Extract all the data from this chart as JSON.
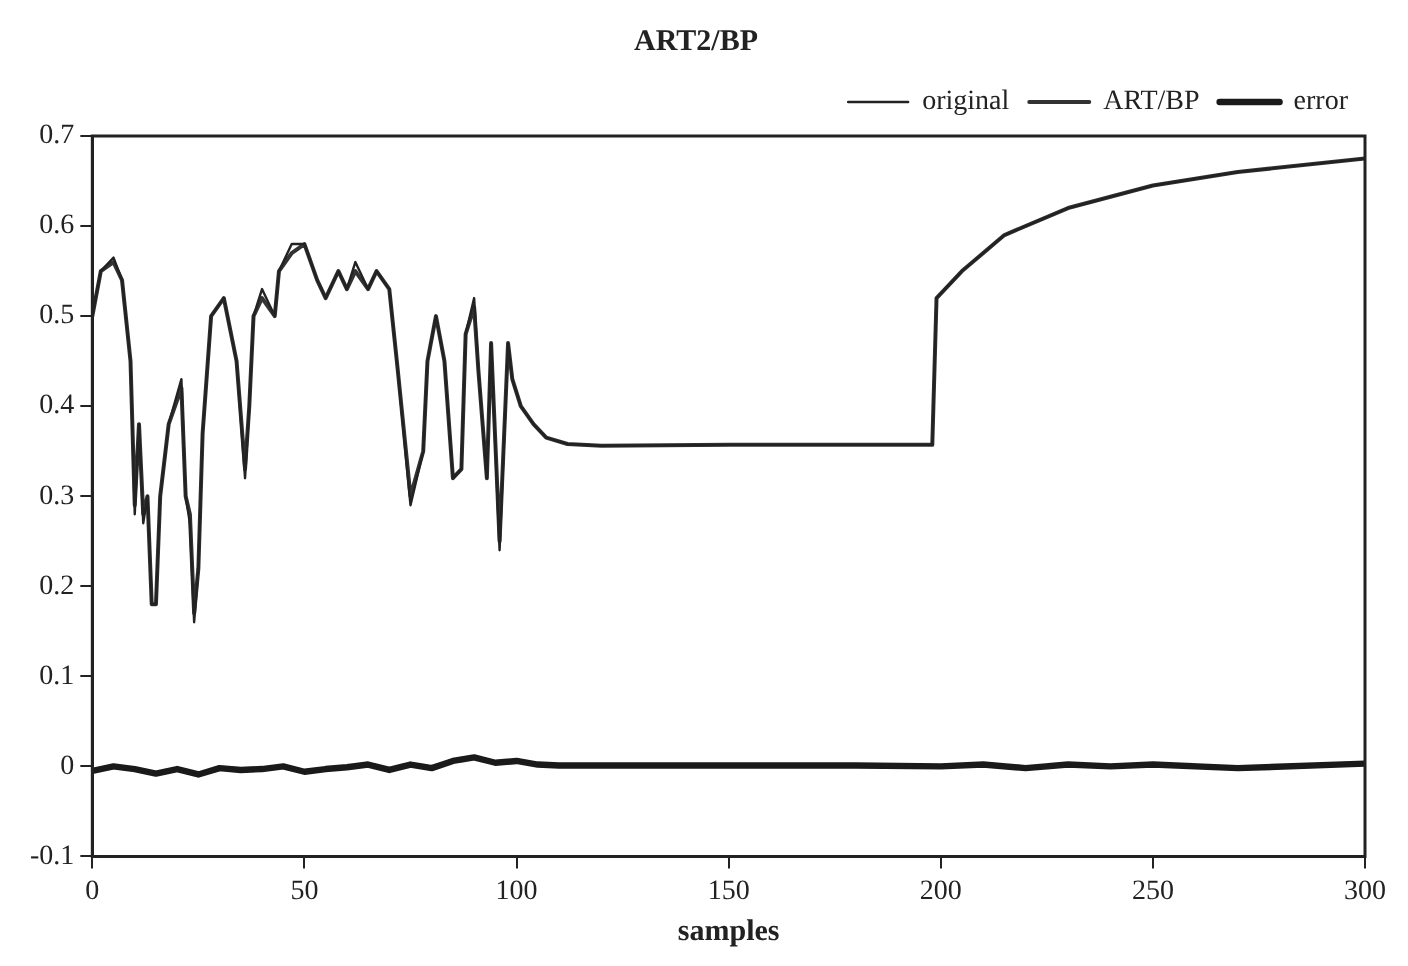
{
  "chart_data": {
    "type": "line",
    "title": "ART2/BP",
    "xlabel": "samples",
    "xlim": [
      0,
      300
    ],
    "ylim": [
      -0.1,
      0.7
    ],
    "xticks": [
      0,
      50,
      100,
      150,
      200,
      250,
      300
    ],
    "yticks": [
      -0.1,
      0,
      0.1,
      0.2,
      0.3,
      0.4,
      0.5,
      0.6,
      0.7
    ],
    "legend": "top right",
    "grid": false,
    "marker": "none",
    "line_style": "solid",
    "series": [
      {
        "name": "original",
        "color": "#222222",
        "x": [
          0,
          2,
          5,
          7,
          9,
          10,
          11,
          12,
          13,
          14,
          15,
          16,
          18,
          21,
          22,
          23,
          24,
          25,
          26,
          28,
          31,
          34,
          36,
          37,
          38,
          40,
          43,
          44,
          47,
          50,
          53,
          55,
          58,
          60,
          62,
          65,
          67,
          70,
          72,
          75,
          78,
          79,
          81,
          83,
          85,
          87,
          88,
          90,
          91,
          93,
          94,
          96,
          98,
          99,
          101,
          104,
          107,
          112,
          120,
          150,
          198,
          199,
          205,
          215,
          230,
          250,
          270,
          300
        ],
        "values": [
          0.5,
          0.55,
          0.565,
          0.54,
          0.45,
          0.28,
          0.38,
          0.27,
          0.3,
          0.18,
          0.18,
          0.3,
          0.38,
          0.43,
          0.3,
          0.27,
          0.16,
          0.22,
          0.37,
          0.5,
          0.52,
          0.45,
          0.32,
          0.4,
          0.5,
          0.53,
          0.5,
          0.55,
          0.58,
          0.58,
          0.54,
          0.52,
          0.55,
          0.53,
          0.56,
          0.53,
          0.55,
          0.53,
          0.44,
          0.29,
          0.35,
          0.45,
          0.5,
          0.45,
          0.32,
          0.33,
          0.48,
          0.52,
          0.44,
          0.32,
          0.47,
          0.24,
          0.47,
          0.43,
          0.4,
          0.38,
          0.365,
          0.358,
          0.356,
          0.357,
          0.357,
          0.52,
          0.55,
          0.59,
          0.62,
          0.645,
          0.66,
          0.675
        ]
      },
      {
        "name": "ART/BP",
        "color": "#333333",
        "x": [
          0,
          2,
          5,
          7,
          9,
          10,
          11,
          12,
          13,
          14,
          15,
          16,
          18,
          21,
          22,
          23,
          24,
          25,
          26,
          28,
          31,
          34,
          36,
          37,
          38,
          40,
          43,
          44,
          47,
          50,
          53,
          55,
          58,
          60,
          62,
          65,
          67,
          70,
          72,
          75,
          78,
          79,
          81,
          83,
          85,
          87,
          88,
          90,
          91,
          93,
          94,
          96,
          98,
          99,
          101,
          104,
          107,
          112,
          120,
          150,
          198,
          199,
          205,
          215,
          230,
          250,
          270,
          300
        ],
        "values": [
          0.5,
          0.55,
          0.56,
          0.54,
          0.45,
          0.29,
          0.38,
          0.28,
          0.3,
          0.18,
          0.18,
          0.3,
          0.38,
          0.42,
          0.3,
          0.28,
          0.17,
          0.22,
          0.37,
          0.5,
          0.52,
          0.45,
          0.33,
          0.4,
          0.5,
          0.52,
          0.5,
          0.55,
          0.57,
          0.58,
          0.54,
          0.52,
          0.55,
          0.53,
          0.55,
          0.53,
          0.55,
          0.53,
          0.44,
          0.3,
          0.35,
          0.45,
          0.5,
          0.45,
          0.32,
          0.33,
          0.48,
          0.51,
          0.44,
          0.32,
          0.47,
          0.25,
          0.47,
          0.43,
          0.4,
          0.38,
          0.365,
          0.358,
          0.356,
          0.357,
          0.357,
          0.52,
          0.55,
          0.59,
          0.62,
          0.645,
          0.66,
          0.675
        ]
      },
      {
        "name": "error",
        "color": "#1a1a1a",
        "x": [
          0,
          5,
          10,
          15,
          20,
          25,
          30,
          35,
          40,
          45,
          50,
          55,
          60,
          65,
          70,
          75,
          80,
          85,
          90,
          95,
          100,
          105,
          110,
          150,
          180,
          200,
          210,
          220,
          230,
          240,
          250,
          270,
          300
        ],
        "values": [
          -0.005,
          0,
          -0.003,
          -0.008,
          -0.003,
          -0.009,
          -0.002,
          -0.004,
          -0.003,
          0,
          -0.006,
          -0.003,
          -0.001,
          0.002,
          -0.004,
          0.002,
          -0.002,
          0.006,
          0.01,
          0.004,
          0.006,
          0.002,
          0.001,
          0.001,
          0.001,
          0,
          0.002,
          -0.002,
          0.002,
          0,
          0.002,
          -0.002,
          0.003
        ]
      }
    ]
  }
}
